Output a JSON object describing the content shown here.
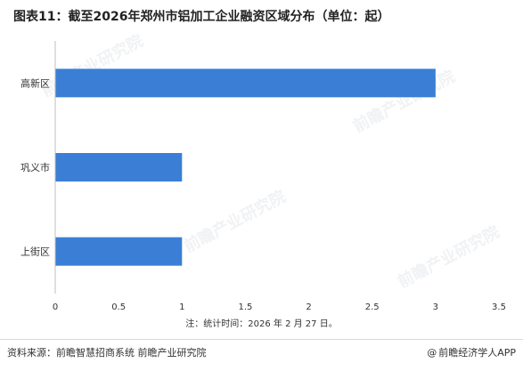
{
  "title": "图表11：截至2026年郑州市铝加工企业融资区域分布（单位：起）",
  "note": "注：统计时间：2026 年 2 月 27 日。",
  "footer": {
    "source": "资料来源：前瞻智慧招商系统  前瞻产业研究院",
    "brand_symbol": "@",
    "brand": "前瞻经济学人APP"
  },
  "watermarks": [
    "前瞻产业研究院",
    "前瞻产业研究院",
    "前瞻产业研究院",
    "前瞻产业研究院"
  ],
  "colors": {
    "bar": "#3a7fd5",
    "axis": "#bfbfbf"
  },
  "chart_data": {
    "type": "bar",
    "orientation": "horizontal",
    "categories": [
      "高新区",
      "巩义市",
      "上街区"
    ],
    "values": [
      3,
      1,
      1
    ],
    "xlim": [
      0,
      3.5
    ],
    "x_ticks": [
      "0",
      "0.5",
      "1",
      "1.5",
      "2",
      "2.5",
      "3",
      "3.5"
    ],
    "grid": false
  }
}
